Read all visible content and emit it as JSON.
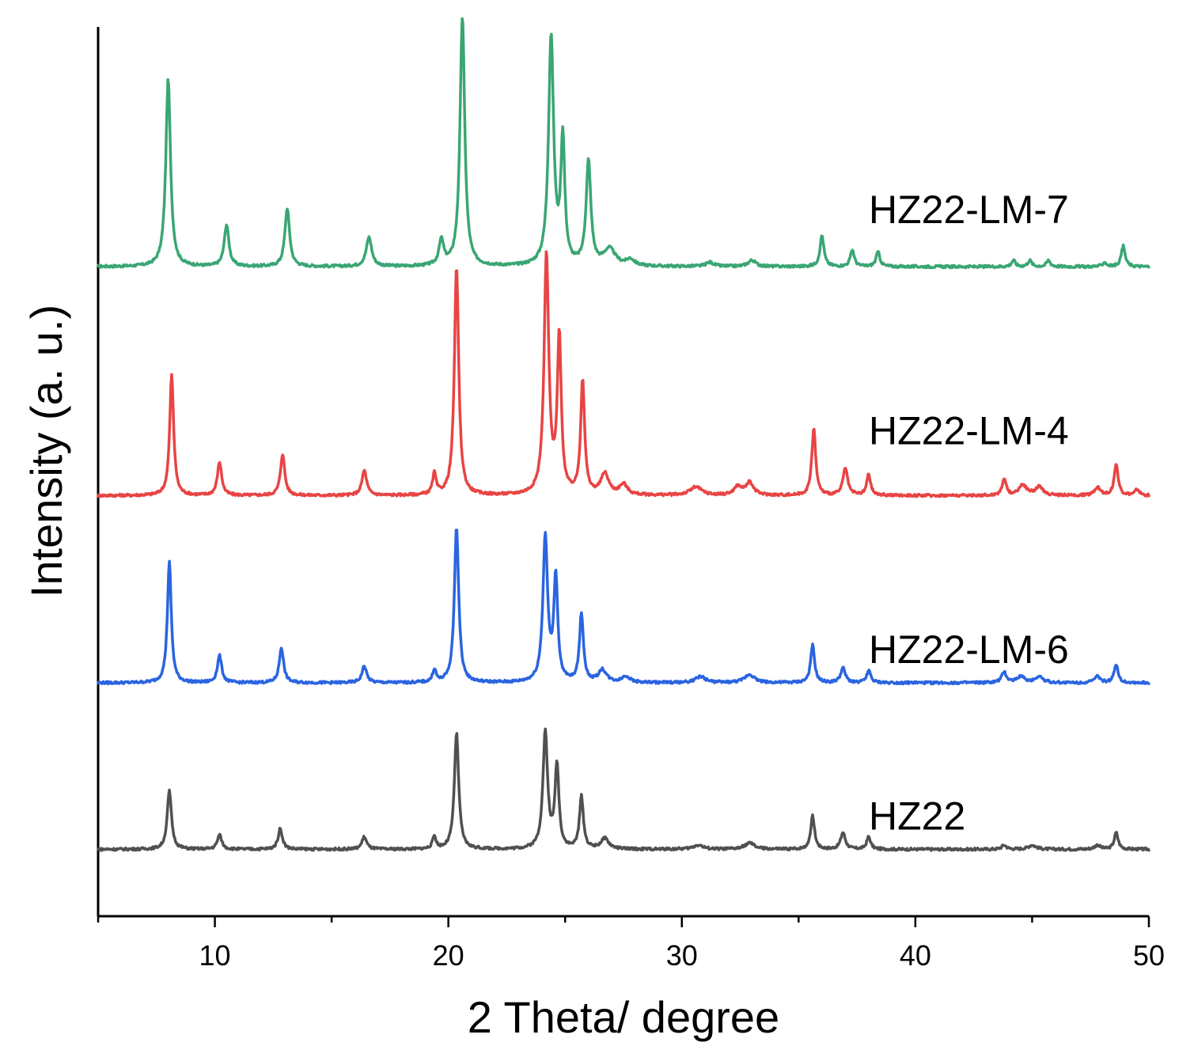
{
  "chart_data": {
    "type": "line",
    "title": "",
    "xlabel": "2 Theta/ degree",
    "ylabel": "Intensity (a. u.)",
    "xlim": [
      5,
      50
    ],
    "x_ticks": [
      10,
      20,
      30,
      40,
      50
    ],
    "x_minor_ticks": [
      5,
      15,
      25,
      35,
      45
    ],
    "y_ticks_shown": false,
    "grid": false,
    "legend": "inline labels at right of each trace",
    "series": [
      {
        "name": "HZ22-LM-7",
        "color": "#3aa673",
        "offset": 3.3,
        "peaks": [
          [
            8.0,
            0.9,
            0.12
          ],
          [
            10.5,
            0.2,
            0.12
          ],
          [
            13.1,
            0.28,
            0.12
          ],
          [
            16.6,
            0.14,
            0.14
          ],
          [
            19.7,
            0.12,
            0.12
          ],
          [
            20.6,
            1.2,
            0.12
          ],
          [
            24.4,
            1.1,
            0.13
          ],
          [
            24.9,
            0.6,
            0.1
          ],
          [
            26.0,
            0.5,
            0.12
          ],
          [
            26.9,
            0.08,
            0.3
          ],
          [
            27.8,
            0.03,
            0.2
          ],
          [
            31.2,
            0.02,
            0.2
          ],
          [
            33.0,
            0.03,
            0.2
          ],
          [
            36.0,
            0.15,
            0.1
          ],
          [
            37.3,
            0.08,
            0.1
          ],
          [
            38.4,
            0.07,
            0.1
          ],
          [
            44.2,
            0.03,
            0.1
          ],
          [
            44.9,
            0.03,
            0.1
          ],
          [
            45.7,
            0.03,
            0.1
          ],
          [
            48.1,
            0.02,
            0.1
          ],
          [
            48.9,
            0.1,
            0.1
          ]
        ]
      },
      {
        "name": "HZ22-LM-4",
        "color": "#e84444",
        "offset": 2.2,
        "peaks": [
          [
            8.15,
            0.58,
            0.1
          ],
          [
            10.2,
            0.16,
            0.11
          ],
          [
            12.9,
            0.2,
            0.11
          ],
          [
            16.4,
            0.12,
            0.12
          ],
          [
            19.4,
            0.1,
            0.09
          ],
          [
            20.35,
            1.1,
            0.11
          ],
          [
            24.2,
            1.15,
            0.12
          ],
          [
            24.75,
            0.75,
            0.1
          ],
          [
            25.75,
            0.55,
            0.1
          ],
          [
            26.7,
            0.1,
            0.2
          ],
          [
            27.5,
            0.05,
            0.2
          ],
          [
            30.6,
            0.04,
            0.3
          ],
          [
            32.4,
            0.04,
            0.2
          ],
          [
            32.9,
            0.06,
            0.2
          ],
          [
            35.65,
            0.32,
            0.1
          ],
          [
            37.0,
            0.13,
            0.12
          ],
          [
            38.0,
            0.1,
            0.1
          ],
          [
            43.8,
            0.08,
            0.1
          ],
          [
            44.6,
            0.05,
            0.2
          ],
          [
            45.3,
            0.04,
            0.2
          ],
          [
            47.8,
            0.04,
            0.15
          ],
          [
            48.6,
            0.15,
            0.1
          ],
          [
            49.5,
            0.03,
            0.1
          ]
        ]
      },
      {
        "name": "HZ22-LM-6",
        "color": "#2a64e0",
        "offset": 1.3,
        "peaks": [
          [
            8.05,
            0.58,
            0.1
          ],
          [
            10.2,
            0.13,
            0.11
          ],
          [
            12.85,
            0.17,
            0.11
          ],
          [
            16.4,
            0.08,
            0.12
          ],
          [
            19.4,
            0.06,
            0.09
          ],
          [
            20.35,
            0.75,
            0.11
          ],
          [
            24.15,
            0.7,
            0.12
          ],
          [
            24.6,
            0.5,
            0.1
          ],
          [
            25.7,
            0.33,
            0.1
          ],
          [
            26.6,
            0.06,
            0.2
          ],
          [
            27.6,
            0.03,
            0.2
          ],
          [
            30.8,
            0.03,
            0.25
          ],
          [
            32.9,
            0.04,
            0.25
          ],
          [
            35.6,
            0.18,
            0.1
          ],
          [
            36.9,
            0.07,
            0.12
          ],
          [
            38.0,
            0.06,
            0.1
          ],
          [
            43.8,
            0.05,
            0.12
          ],
          [
            44.5,
            0.03,
            0.2
          ],
          [
            45.3,
            0.03,
            0.2
          ],
          [
            47.8,
            0.03,
            0.15
          ],
          [
            48.6,
            0.09,
            0.1
          ]
        ]
      },
      {
        "name": "HZ22",
        "color": "#505050",
        "offset": 0.5,
        "peaks": [
          [
            8.05,
            0.28,
            0.11
          ],
          [
            10.2,
            0.07,
            0.11
          ],
          [
            12.8,
            0.1,
            0.11
          ],
          [
            16.4,
            0.06,
            0.12
          ],
          [
            19.4,
            0.06,
            0.09
          ],
          [
            20.35,
            0.56,
            0.11
          ],
          [
            24.15,
            0.56,
            0.12
          ],
          [
            24.65,
            0.4,
            0.1
          ],
          [
            25.7,
            0.25,
            0.1
          ],
          [
            26.7,
            0.05,
            0.2
          ],
          [
            30.7,
            0.02,
            0.25
          ],
          [
            32.9,
            0.03,
            0.25
          ],
          [
            35.6,
            0.16,
            0.1
          ],
          [
            36.9,
            0.08,
            0.12
          ],
          [
            38.0,
            0.06,
            0.1
          ],
          [
            43.8,
            0.02,
            0.12
          ],
          [
            45.0,
            0.02,
            0.2
          ],
          [
            47.8,
            0.02,
            0.15
          ],
          [
            48.6,
            0.08,
            0.1
          ]
        ]
      }
    ]
  }
}
